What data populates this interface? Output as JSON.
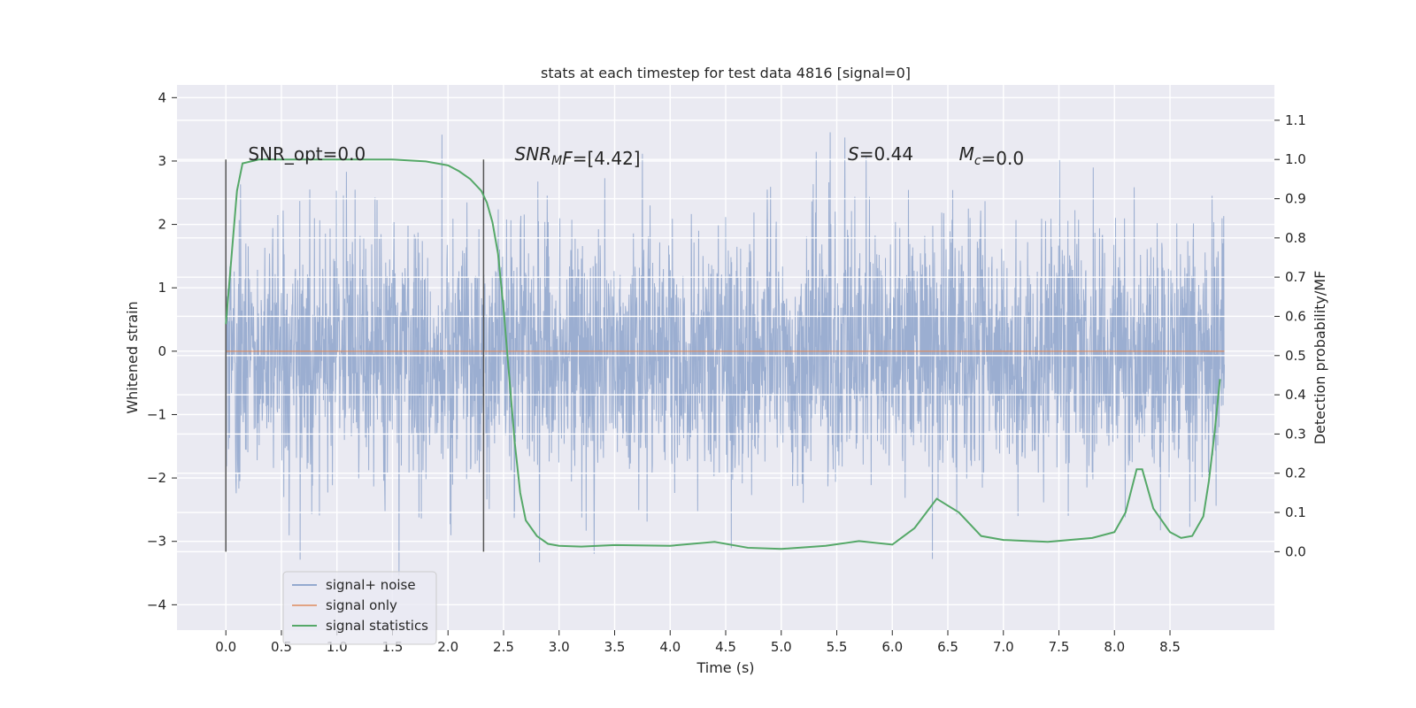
{
  "chart_data": {
    "type": "line",
    "title": "stats at each timestep for test data 4816 [signal=0]",
    "xlabel": "Time (s)",
    "ylabel": "Whitened strain",
    "ylabel_right": "Detection probability/MF",
    "xlim": [
      -0.44,
      9.44
    ],
    "ylim": [
      -4.4,
      4.2
    ],
    "ylim_right": [
      -0.2,
      1.19
    ],
    "x_ticks": [
      0.0,
      0.5,
      1.0,
      1.5,
      2.0,
      2.5,
      3.0,
      3.5,
      4.0,
      4.5,
      5.0,
      5.5,
      6.0,
      6.5,
      7.0,
      7.5,
      8.0,
      8.5
    ],
    "x_tick_labels": [
      "0.0",
      "0.5",
      "1.0",
      "1.5",
      "2.0",
      "2.5",
      "3.0",
      "3.5",
      "4.0",
      "4.5",
      "5.0",
      "5.5",
      "6.0",
      "6.5",
      "7.0",
      "7.5",
      "8.0",
      "8.5"
    ],
    "y_ticks": [
      4,
      3,
      2,
      1,
      0,
      -1,
      -2,
      -3,
      -4
    ],
    "y_tick_labels": [
      "4",
      "3",
      "2",
      "1",
      "0",
      "−1",
      "−2",
      "−3",
      "−4"
    ],
    "y_right_ticks": [
      1.1,
      1.0,
      0.9,
      0.8,
      0.7,
      0.6,
      0.5,
      0.4,
      0.3,
      0.2,
      0.1,
      0.0
    ],
    "y_right_tick_labels": [
      "1.1",
      "1.0",
      "0.9",
      "0.8",
      "0.7",
      "0.6",
      "0.5",
      "0.4",
      "0.3",
      "0.2",
      "0.1",
      "0.0"
    ],
    "grid": true,
    "legend_placement": "lower-left",
    "series": [
      {
        "name": "signal+ noise",
        "color": "#4c72b0",
        "axis": "left",
        "x_range": [
          0.0,
          8.99
        ],
        "typical_range": [
          -2.0,
          2.0
        ],
        "extremes": [
          -4.0,
          3.85
        ]
      },
      {
        "name": "signal only",
        "color": "#dd8452",
        "axis": "left",
        "x": [
          0.0,
          8.99
        ],
        "y": [
          0.0,
          0.0
        ]
      },
      {
        "name": "signal statistics",
        "color": "#55a868",
        "axis": "right",
        "x": [
          0.0,
          0.05,
          0.1,
          0.15,
          0.3,
          0.5,
          1.0,
          1.5,
          1.8,
          2.0,
          2.1,
          2.2,
          2.3,
          2.35,
          2.4,
          2.45,
          2.5,
          2.55,
          2.6,
          2.65,
          2.7,
          2.8,
          2.9,
          3.0,
          3.2,
          3.5,
          4.0,
          4.4,
          4.7,
          5.0,
          5.4,
          5.7,
          6.0,
          6.2,
          6.4,
          6.6,
          6.8,
          7.0,
          7.4,
          7.8,
          8.0,
          8.1,
          8.2,
          8.25,
          8.35,
          8.5,
          8.6,
          8.7,
          8.8,
          8.85,
          8.9,
          8.95
        ],
        "y": [
          0.58,
          0.75,
          0.92,
          0.99,
          1.0,
          1.0,
          1.0,
          1.0,
          0.995,
          0.985,
          0.97,
          0.95,
          0.92,
          0.89,
          0.84,
          0.76,
          0.62,
          0.45,
          0.28,
          0.15,
          0.08,
          0.04,
          0.02,
          0.015,
          0.013,
          0.017,
          0.015,
          0.025,
          0.01,
          0.007,
          0.015,
          0.027,
          0.018,
          0.06,
          0.135,
          0.1,
          0.04,
          0.03,
          0.025,
          0.035,
          0.05,
          0.1,
          0.21,
          0.21,
          0.11,
          0.05,
          0.035,
          0.04,
          0.09,
          0.18,
          0.3,
          0.44
        ]
      }
    ],
    "vlines": [
      0.0,
      2.32
    ],
    "annotations": [
      {
        "x": 0.2,
        "text": "SNR_opt=0.0",
        "segments": [
          {
            "t": "SNR_opt=0.0",
            "style": "normal"
          }
        ]
      },
      {
        "x": 2.6,
        "text": "SNR_MF=[4.42]",
        "segments": [
          {
            "t": "SNR",
            "style": "italic"
          },
          {
            "t": "M",
            "style": "italic-sub"
          },
          {
            "t": "F",
            "style": "italic"
          },
          {
            "t": "=[4.42]",
            "style": "normal"
          }
        ]
      },
      {
        "x": 5.6,
        "text": "S=0.44",
        "segments": [
          {
            "t": "S",
            "style": "italic"
          },
          {
            "t": "=0.44",
            "style": "normal"
          }
        ]
      },
      {
        "x": 6.6,
        "text": "M_c=0.0",
        "segments": [
          {
            "t": "M",
            "style": "italic"
          },
          {
            "t": "c",
            "style": "italic-sub"
          },
          {
            "t": "=0.0",
            "style": "normal"
          }
        ]
      }
    ],
    "annotation_y": 3.0
  }
}
